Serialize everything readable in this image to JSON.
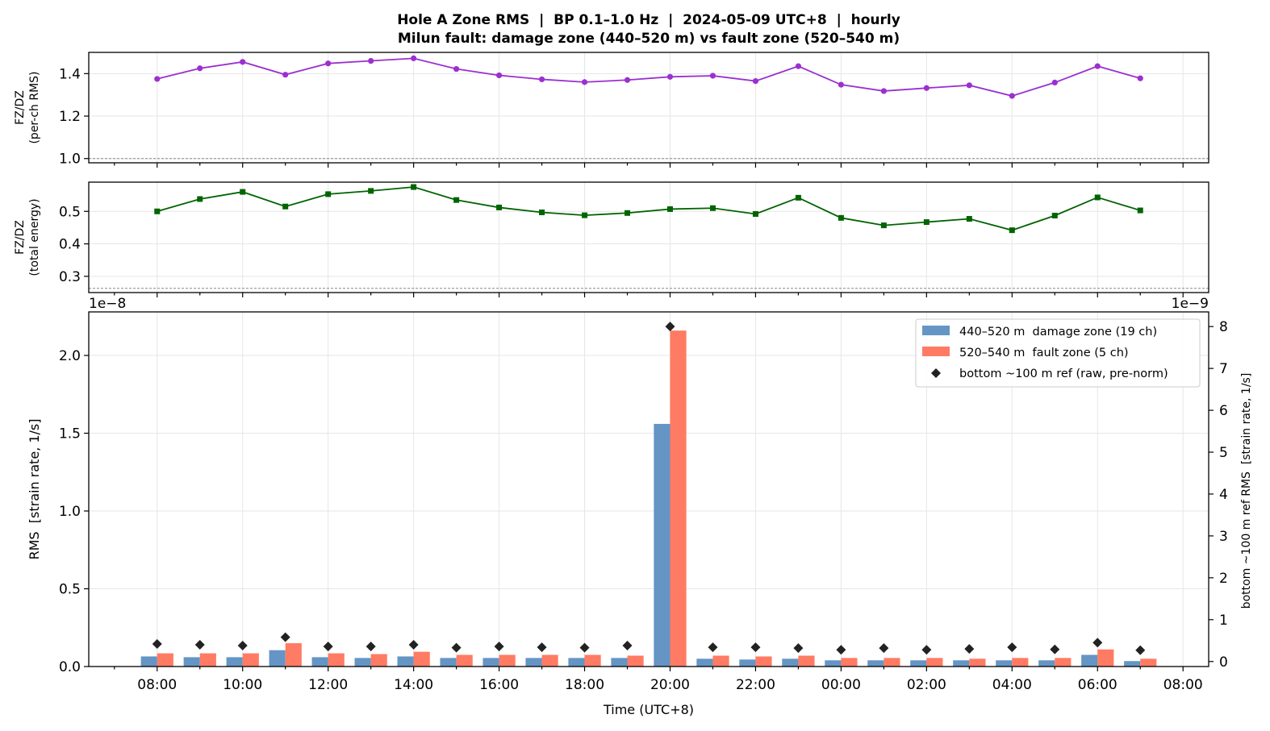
{
  "figure": {
    "title_line1": "Hole A Zone RMS  |  BP 0.1–1.0 Hz  |  2024-05-09 UTC+8  |  hourly",
    "title_line2": "Milun fault: damage zone (440–520 m) vs fault zone (520–540 m)"
  },
  "chart_data": [
    {
      "type": "line",
      "panel": "top",
      "ylabel_line1": "FZ/DZ",
      "ylabel_line2": "(per-ch RMS)",
      "ylim": [
        0.98,
        1.5
      ],
      "yticks": [
        1.0,
        1.2,
        1.4
      ],
      "ytick_labels": [
        "1.0",
        "1.2",
        "1.4"
      ],
      "reference_line": 1.0,
      "grid": true,
      "color": "#9b30d0",
      "marker": "circle",
      "hours": [
        8,
        9,
        10,
        11,
        12,
        13,
        14,
        15,
        16,
        17,
        18,
        19,
        20,
        21,
        22,
        23,
        24,
        25,
        26,
        27,
        28,
        29,
        30,
        31
      ],
      "values": [
        1.375,
        1.425,
        1.455,
        1.395,
        1.448,
        1.46,
        1.472,
        1.422,
        1.392,
        1.373,
        1.36,
        1.37,
        1.385,
        1.39,
        1.365,
        1.435,
        1.348,
        1.318,
        1.332,
        1.345,
        1.295,
        1.358,
        1.435,
        1.378
      ]
    },
    {
      "type": "line",
      "panel": "middle",
      "ylabel_line1": "FZ/DZ",
      "ylabel_line2": "(total energy)",
      "ylim": [
        0.25,
        0.59
      ],
      "yticks": [
        0.3,
        0.4,
        0.5
      ],
      "ytick_labels": [
        "0.3",
        "0.4",
        "0.5"
      ],
      "reference_line": 0.263,
      "grid": true,
      "color": "#006400",
      "marker": "square",
      "hours": [
        8,
        9,
        10,
        11,
        12,
        13,
        14,
        15,
        16,
        17,
        18,
        19,
        20,
        21,
        22,
        23,
        24,
        25,
        26,
        27,
        28,
        29,
        30,
        31
      ],
      "values": [
        0.5,
        0.538,
        0.56,
        0.515,
        0.553,
        0.563,
        0.575,
        0.535,
        0.512,
        0.497,
        0.488,
        0.495,
        0.507,
        0.51,
        0.492,
        0.542,
        0.48,
        0.457,
        0.467,
        0.477,
        0.442,
        0.487,
        0.543,
        0.503
      ]
    },
    {
      "type": "bar",
      "panel": "bottom",
      "ylabel": "RMS  [strain rate, 1/s]",
      "y2label": "bottom ~100 m ref RMS  [strain rate, 1/s]",
      "xlabel": "Time (UTC+8)",
      "y_offset_label": "1e−8",
      "y2_offset_label": "1e−9",
      "ylim": [
        0,
        2.28
      ],
      "yticks": [
        0.0,
        0.5,
        1.0,
        1.5,
        2.0
      ],
      "ytick_labels": [
        "0.0",
        "0.5",
        "1.0",
        "1.5",
        "2.0"
      ],
      "y2lim": [
        -0.12,
        8.35
      ],
      "y2ticks": [
        0,
        1,
        2,
        3,
        4,
        5,
        6,
        7,
        8
      ],
      "y2tick_labels": [
        "0",
        "1",
        "2",
        "3",
        "4",
        "5",
        "6",
        "7",
        "8"
      ],
      "xlim": [
        6.4,
        32.6
      ],
      "xticks": [
        8,
        10,
        12,
        14,
        16,
        18,
        20,
        22,
        24,
        26,
        28,
        30,
        32
      ],
      "xtick_labels": [
        "08:00",
        "10:00",
        "12:00",
        "14:00",
        "16:00",
        "18:00",
        "20:00",
        "22:00",
        "00:00",
        "02:00",
        "04:00",
        "06:00",
        "08:00"
      ],
      "grid": true,
      "legend_position": "top-right",
      "hours": [
        8,
        9,
        10,
        11,
        12,
        13,
        14,
        15,
        16,
        17,
        18,
        19,
        20,
        21,
        22,
        23,
        24,
        25,
        26,
        27,
        28,
        29,
        30,
        31
      ],
      "series": [
        {
          "name": "440–520 m  damage zone (19 ch)",
          "color": "#6495c4",
          "axis": "left",
          "values": [
            0.065,
            0.06,
            0.06,
            0.105,
            0.06,
            0.055,
            0.065,
            0.055,
            0.055,
            0.055,
            0.055,
            0.055,
            1.56,
            0.05,
            0.045,
            0.05,
            0.04,
            0.04,
            0.04,
            0.04,
            0.04,
            0.04,
            0.075,
            0.035
          ]
        },
        {
          "name": "520–540 m  fault zone (5 ch)",
          "color": "#ff7b63",
          "axis": "left",
          "values": [
            0.085,
            0.085,
            0.085,
            0.15,
            0.085,
            0.08,
            0.095,
            0.075,
            0.075,
            0.075,
            0.075,
            0.07,
            2.16,
            0.07,
            0.065,
            0.07,
            0.055,
            0.055,
            0.055,
            0.05,
            0.055,
            0.055,
            0.11,
            0.05
          ]
        },
        {
          "name": "bottom ~100 m ref (raw, pre-norm)",
          "color": "#222222",
          "axis": "right",
          "marker": "diamond",
          "values": [
            0.42,
            0.4,
            0.38,
            0.58,
            0.36,
            0.36,
            0.4,
            0.33,
            0.36,
            0.34,
            0.33,
            0.38,
            8.0,
            0.34,
            0.34,
            0.32,
            0.28,
            0.32,
            0.28,
            0.3,
            0.34,
            0.29,
            0.45,
            0.27
          ]
        }
      ]
    }
  ]
}
